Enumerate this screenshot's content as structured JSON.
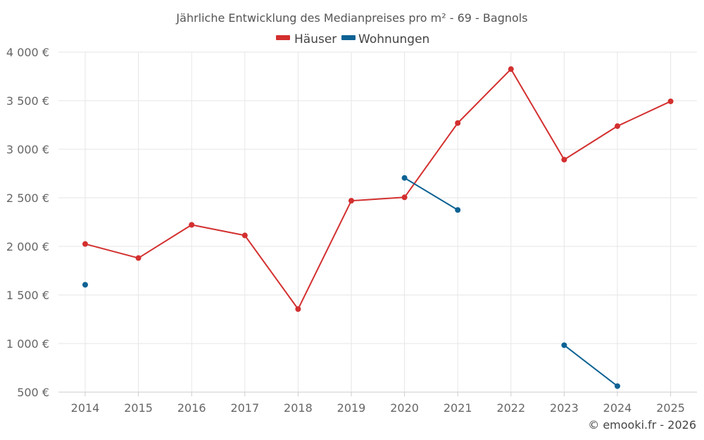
{
  "chart_data": {
    "type": "line",
    "title": "Jährliche Entwicklung des Medianpreises pro m² - 69 - Bagnols",
    "xlabel": "",
    "ylabel": "",
    "categories": [
      "2014",
      "2015",
      "2016",
      "2017",
      "2018",
      "2019",
      "2020",
      "2021",
      "2022",
      "2023",
      "2024",
      "2025"
    ],
    "ylim": [
      500,
      4000
    ],
    "yticks": [
      500,
      1000,
      1500,
      2000,
      2500,
      3000,
      3500,
      4000
    ],
    "ytick_labels": [
      "500 €",
      "1 000 €",
      "1 500 €",
      "2 000 €",
      "2 500 €",
      "3 000 €",
      "3 500 €",
      "4 000 €"
    ],
    "grid": true,
    "legend_position": "top-center",
    "series": [
      {
        "name": "Häuser",
        "color": "#d32f2f",
        "values": [
          2025,
          1880,
          2222,
          2113,
          1355,
          2470,
          2505,
          3270,
          3825,
          2893,
          3238,
          3493
        ]
      },
      {
        "name": "Wohnungen",
        "color": "#0d6293",
        "values": [
          1605,
          null,
          null,
          null,
          null,
          null,
          2705,
          2375,
          null,
          983,
          562,
          null
        ]
      }
    ],
    "copyright": "© emooki.fr - 2026"
  }
}
